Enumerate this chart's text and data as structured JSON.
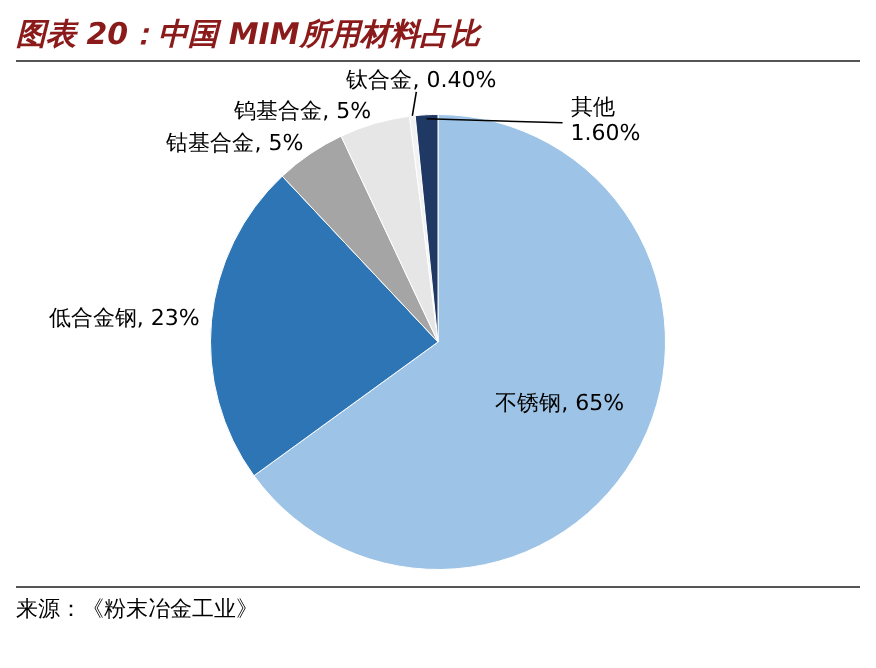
{
  "chart_data": {
    "type": "pie",
    "title": "图表 20：中国 MIM所用材料占比",
    "annotations": [
      "来源：《粉末冶金工业》"
    ],
    "categories": [
      "不锈钢",
      "低合金钢",
      "钴基合金",
      "钨基合金",
      "钛合金",
      "其他"
    ],
    "values": [
      65,
      23,
      5,
      5,
      0.4,
      1.6
    ],
    "value_labels": [
      "65%",
      "23%",
      "5%",
      "5%",
      "0.40%",
      "1.60%"
    ],
    "colors": [
      "#9dc3e6",
      "#2e75b6",
      "#a5a5a5",
      "#e7e6e6",
      "#f2f2f2",
      "#1f3864"
    ],
    "legend": false
  }
}
